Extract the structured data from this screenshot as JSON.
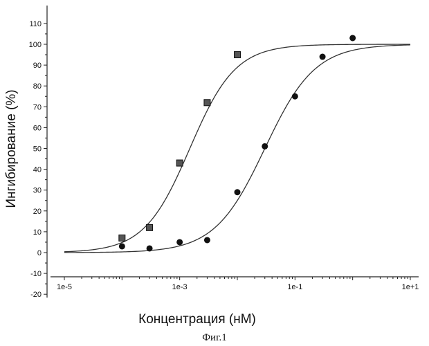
{
  "figure": {
    "caption": "Фиг.1"
  },
  "chart_data": {
    "type": "scatter",
    "title": "",
    "xlabel": "Концентрация (нМ)",
    "ylabel": "Ингибирование (%)",
    "xscale": "log",
    "xlim": [
      1e-05,
      10
    ],
    "ylim": [
      -20,
      115
    ],
    "grid": false,
    "legend": "none",
    "x_ticks": [
      {
        "value": 1e-05,
        "label": "1e-5"
      },
      {
        "value": 0.001,
        "label": "1e-3"
      },
      {
        "value": 0.1,
        "label": "1e-1"
      },
      {
        "value": 10,
        "label": "1e+1"
      }
    ],
    "y_ticks": [
      {
        "value": -20,
        "label": "-20"
      },
      {
        "value": -10,
        "label": "-10"
      },
      {
        "value": 0,
        "label": "0"
      },
      {
        "value": 10,
        "label": "10"
      },
      {
        "value": 20,
        "label": "20"
      },
      {
        "value": 30,
        "label": "30"
      },
      {
        "value": 40,
        "label": "40"
      },
      {
        "value": 50,
        "label": "50"
      },
      {
        "value": 60,
        "label": "60"
      },
      {
        "value": 70,
        "label": "70"
      },
      {
        "value": 80,
        "label": "80"
      },
      {
        "value": 90,
        "label": "90"
      },
      {
        "value": 100,
        "label": "100"
      },
      {
        "value": 110,
        "label": "110"
      }
    ],
    "series": [
      {
        "marker": "square",
        "color": "#555555",
        "points": [
          {
            "x": 0.0001,
            "y": 7
          },
          {
            "x": 0.0003,
            "y": 12
          },
          {
            "x": 0.001,
            "y": 43
          },
          {
            "x": 0.003,
            "y": 72
          },
          {
            "x": 0.01,
            "y": 95
          }
        ],
        "fit": {
          "model": "sigmoid",
          "bottom": 0,
          "top": 100,
          "ec50": 0.0015,
          "hill": 1.1
        }
      },
      {
        "marker": "circle",
        "color": "#111111",
        "points": [
          {
            "x": 0.0001,
            "y": 3
          },
          {
            "x": 0.0003,
            "y": 2
          },
          {
            "x": 0.001,
            "y": 5
          },
          {
            "x": 0.003,
            "y": 6
          },
          {
            "x": 0.01,
            "y": 29
          },
          {
            "x": 0.03,
            "y": 51
          },
          {
            "x": 0.1,
            "y": 75
          },
          {
            "x": 0.3,
            "y": 94
          },
          {
            "x": 1,
            "y": 103
          }
        ],
        "fit": {
          "model": "sigmoid",
          "bottom": 0,
          "top": 100,
          "ec50": 0.03,
          "hill": 1.0
        }
      }
    ]
  }
}
